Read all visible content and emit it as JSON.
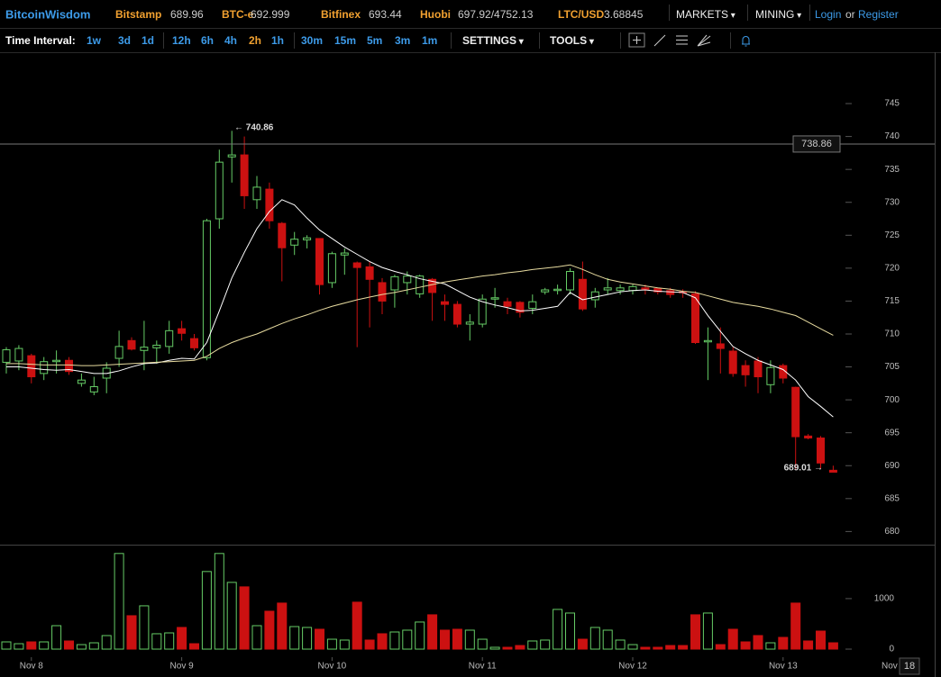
{
  "header": {
    "brand": "BitcoinWisdom",
    "tickers": [
      {
        "name": "Bitstamp",
        "price": "689.96"
      },
      {
        "name": "BTC-e",
        "price": "692.999"
      },
      {
        "name": "Bitfinex",
        "price": "693.44"
      },
      {
        "name": "Huobi",
        "price": "697.92/4752.13"
      },
      {
        "name": "LTC/USD",
        "price": "3.68845"
      }
    ],
    "menus": [
      "MARKETS",
      "MINING"
    ],
    "login": "Login",
    "or": "or",
    "register": "Register"
  },
  "toolbar": {
    "label": "Time Interval:",
    "intervals": [
      [
        "1w",
        "3d",
        "1d"
      ],
      [
        "12h",
        "6h",
        "4h",
        "2h",
        "1h"
      ],
      [
        "30m",
        "15m",
        "5m",
        "3m",
        "1m"
      ]
    ],
    "active": "2h",
    "settings": "SETTINGS",
    "tools": "TOOLS"
  },
  "chart_data": {
    "type": "candlestick",
    "categories": [
      null,
      null,
      "Nov 8",
      null,
      null,
      null,
      null,
      null,
      null,
      null,
      null,
      null,
      null,
      null,
      "Nov 9",
      null,
      null,
      null,
      null,
      null,
      null,
      null,
      null,
      null,
      null,
      null,
      "Nov 10",
      null,
      null,
      null,
      null,
      null,
      null,
      null,
      null,
      null,
      null,
      null,
      "Nov 11",
      null,
      null,
      null,
      null,
      null,
      null,
      null,
      null,
      null,
      null,
      null,
      "Nov 12",
      null,
      null,
      null,
      null,
      null,
      null,
      null,
      null,
      null,
      null,
      null,
      "Nov 13",
      null,
      null,
      null,
      null
    ],
    "open": [
      705.7,
      705.9,
      706.7,
      704.0,
      705.8,
      706,
      702.5,
      701.2,
      703.3,
      706.3,
      709,
      707.5,
      707.9,
      708.1,
      710.8,
      709.3,
      706.4,
      727.5,
      736.9,
      737.2,
      730.4,
      732,
      726.8,
      723.5,
      724.3,
      724.5,
      717.8,
      722,
      720.8,
      720.2,
      717.8,
      716.7,
      717.8,
      716.1,
      718.3,
      714.9,
      714.5,
      711.5,
      711.5,
      715.3,
      714.9,
      714.8,
      713.9,
      716.4,
      716.6,
      716.7,
      718.3,
      715.2,
      716.7,
      716.6,
      716.6,
      717,
      716.9,
      716.6,
      716.4,
      716.1,
      708.8,
      708.5,
      707.4,
      705.2,
      705.9,
      702.3,
      705.2,
      701.9,
      694.5,
      694.2,
      689.3
    ],
    "high": [
      708,
      708.3,
      707,
      706.5,
      707.5,
      706.5,
      704,
      703.5,
      705.7,
      710.5,
      709.5,
      712,
      709,
      712,
      712,
      710,
      727.5,
      738,
      740.86,
      740,
      734,
      733,
      727,
      725.5,
      725,
      724.5,
      722.5,
      723,
      721,
      721,
      718.5,
      719,
      719.5,
      719,
      718.5,
      716,
      715,
      713,
      716,
      717,
      715.5,
      715,
      716,
      717,
      717.5,
      720,
      721,
      717,
      718.5,
      717.5,
      717.5,
      717.5,
      717,
      717,
      716.8,
      716.5,
      711,
      711,
      708,
      706,
      706.5,
      706,
      705.5,
      702,
      694.8,
      694.5,
      690
    ],
    "low": [
      704,
      704.5,
      702.5,
      703,
      704,
      703.8,
      702,
      700.7,
      701,
      705,
      707.5,
      704.5,
      705.5,
      707,
      709,
      707.5,
      706,
      726,
      733,
      729,
      729,
      726,
      718,
      722,
      723,
      716,
      717,
      719,
      708,
      711,
      713,
      714,
      716,
      715.5,
      712,
      712,
      711,
      709,
      711,
      714,
      713,
      712.5,
      713,
      716,
      716,
      716,
      713.5,
      714,
      716,
      716,
      716,
      716,
      716,
      715.5,
      715.5,
      708.5,
      703,
      704,
      703.5,
      702,
      701,
      701,
      702.5,
      689.5,
      694,
      689.5,
      689
    ],
    "close": [
      707.6,
      707.8,
      703.5,
      705.8,
      706,
      704.3,
      703,
      702,
      704.8,
      708.1,
      707.7,
      708,
      708.3,
      710.5,
      710.1,
      707.9,
      727.2,
      736.1,
      737.2,
      731,
      732.3,
      727.2,
      723.1,
      724.4,
      724.6,
      717.5,
      722.2,
      722.3,
      720.1,
      718.3,
      715,
      718.7,
      718.8,
      718.8,
      716.3,
      714.5,
      711.5,
      711.8,
      715.3,
      715.5,
      714.2,
      713.3,
      714.9,
      716.7,
      716.8,
      719.5,
      713.8,
      716.4,
      717,
      717,
      717.2,
      716.8,
      716.4,
      716,
      716.3,
      708.7,
      709,
      707.8,
      704,
      703.8,
      703.5,
      704.9,
      703.3,
      694.4,
      694.2,
      690.4,
      689.01
    ],
    "volume": [
      143,
      107,
      143,
      143,
      464,
      161,
      89,
      125,
      268,
      1893,
      661,
      857,
      304,
      321,
      429,
      107,
      1536,
      1893,
      1321,
      1232,
      464,
      750,
      911,
      446,
      429,
      393,
      196,
      179,
      929,
      179,
      304,
      339,
      375,
      536,
      679,
      375,
      393,
      375,
      196,
      36,
      36,
      71,
      161,
      179,
      786,
      714,
      196,
      429,
      375,
      179,
      89,
      36,
      36,
      71,
      71,
      679,
      714,
      89,
      393,
      143,
      268,
      125,
      232,
      911,
      161,
      357,
      125
    ],
    "ma_fast": {
      "color": "#ffffff",
      "values": [
        705,
        705,
        704.8,
        704.6,
        704.5,
        704.6,
        704.3,
        704,
        704,
        704.4,
        705,
        705.5,
        705.6,
        706,
        706.3,
        706.2,
        708.7,
        713.5,
        718.5,
        722.4,
        726,
        728.6,
        730.4,
        729.6,
        727.6,
        725.8,
        724.5,
        723.2,
        722.1,
        721,
        720.1,
        719.5,
        719,
        718.4,
        718,
        717.6,
        716.6,
        715.6,
        714.9,
        714.4,
        714,
        713.5,
        713.6,
        713.9,
        714.2,
        716.3,
        715.2,
        715.6,
        716,
        716.4,
        716.6,
        716.7,
        716.5,
        716.4,
        716.3,
        715.5,
        712.8,
        710.4,
        708.1,
        707,
        706,
        705.3,
        704.6,
        703,
        700.5,
        699,
        697.4
      ]
    },
    "ma_slow": {
      "color": "#e8dca0",
      "values": [
        705.5,
        705.5,
        705.4,
        705.3,
        705.3,
        705.3,
        705.2,
        705.2,
        705.3,
        705.4,
        705.5,
        705.6,
        705.7,
        705.8,
        705.9,
        706,
        706.6,
        707.8,
        708.7,
        709.4,
        710,
        710.8,
        711.6,
        712.3,
        712.9,
        713.6,
        714.2,
        714.7,
        715.2,
        715.6,
        716,
        716.3,
        716.7,
        717.1,
        717.5,
        717.9,
        718.2,
        718.5,
        718.8,
        719,
        719.3,
        719.5,
        719.8,
        720,
        720.2,
        720.5,
        719.8,
        719,
        718.3,
        717.9,
        717.6,
        717.3,
        717,
        716.8,
        716.5,
        716.3,
        715.8,
        715.3,
        714.8,
        714.5,
        714.2,
        713.8,
        713.3,
        712.8,
        711.8,
        710.8,
        709.8
      ]
    },
    "up_color": "#66cc66",
    "down_color": "#cc1111",
    "ylim": [
      678,
      752.8
    ],
    "yticks": [
      680,
      685,
      690,
      695,
      700,
      705,
      710,
      715,
      720,
      725,
      730,
      735,
      740,
      745
    ],
    "volume_ylim": [
      -160,
      2050
    ],
    "volume_yticks": [
      0,
      1000
    ],
    "max_label": "← 740.86",
    "min_label": "689.01 →",
    "crosshair": 738.86,
    "cut_label": "Nov",
    "badge": "18"
  }
}
